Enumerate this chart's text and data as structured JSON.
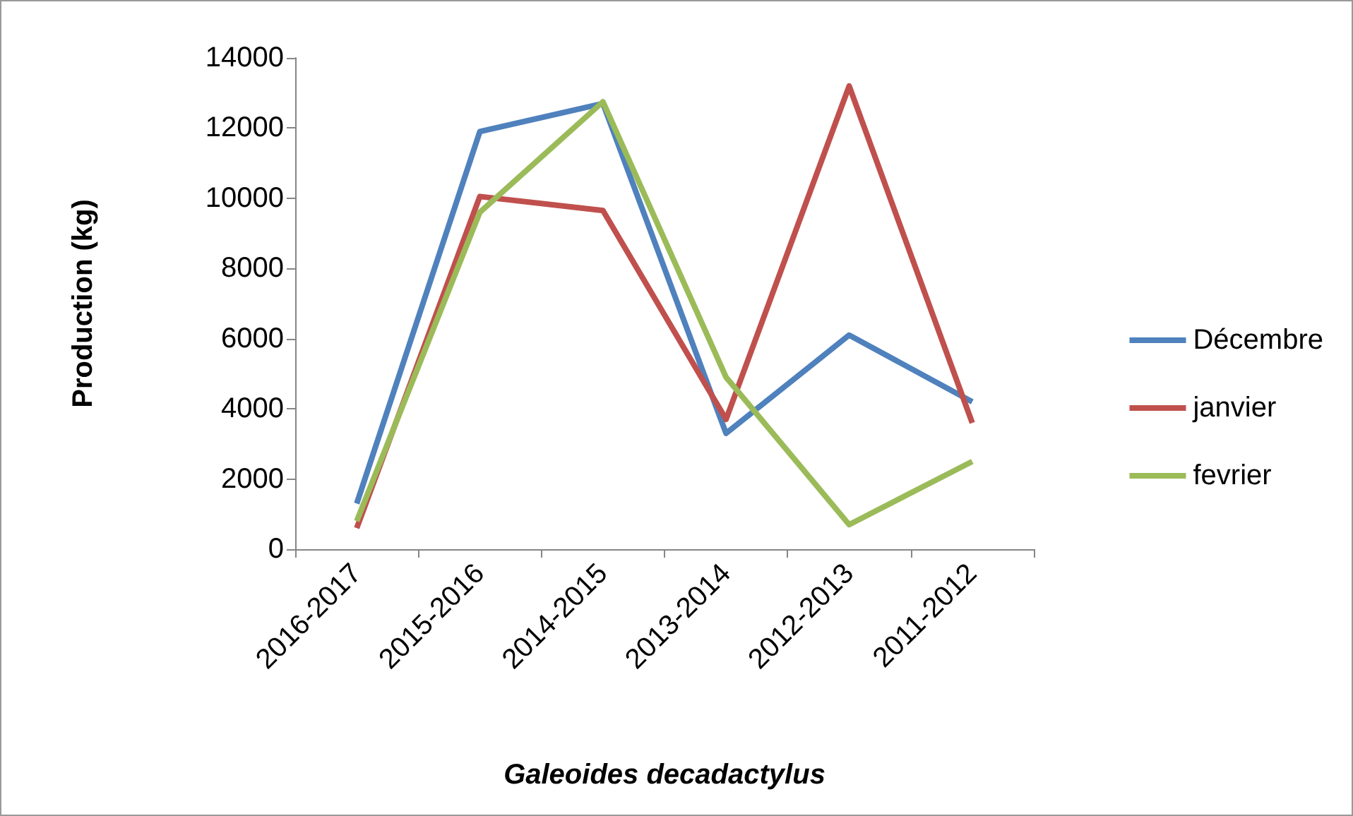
{
  "chart_data": {
    "type": "line",
    "xlabel": "Galeoides decadactylus",
    "ylabel": "Production (kg)",
    "categories": [
      "2016-2017",
      "2015-2016",
      "2014-2015",
      "2013-2014",
      "2012-2013",
      "2011-2012"
    ],
    "series": [
      {
        "name": "Décembre",
        "color": "#4f81bd",
        "values": [
          1300,
          11900,
          12700,
          3300,
          6100,
          4200
        ]
      },
      {
        "name": "janvier",
        "color": "#c0504d",
        "values": [
          600,
          10050,
          9650,
          3700,
          13200,
          3600
        ]
      },
      {
        "name": "fevrier",
        "color": "#9bbb59",
        "values": [
          800,
          9600,
          12750,
          4900,
          700,
          2500
        ]
      }
    ],
    "ylim": [
      0,
      14000
    ],
    "yticks": [
      0,
      2000,
      4000,
      6000,
      8000,
      10000,
      12000,
      14000
    ],
    "grid": false,
    "legend": "right",
    "marker": "none"
  }
}
